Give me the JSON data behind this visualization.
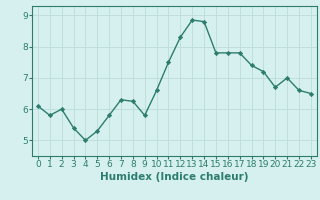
{
  "x": [
    0,
    1,
    2,
    3,
    4,
    5,
    6,
    7,
    8,
    9,
    10,
    11,
    12,
    13,
    14,
    15,
    16,
    17,
    18,
    19,
    20,
    21,
    22,
    23
  ],
  "y": [
    6.1,
    5.8,
    6.0,
    5.4,
    5.0,
    5.3,
    5.8,
    6.3,
    6.25,
    5.8,
    6.6,
    7.5,
    8.3,
    8.85,
    8.8,
    7.8,
    7.8,
    7.8,
    7.4,
    7.2,
    6.7,
    7.0,
    6.6,
    6.5
  ],
  "line_color": "#2d7d6e",
  "marker": "D",
  "marker_size": 2.2,
  "bg_color": "#d6f0f0",
  "grid_color": "#c0dede",
  "xlabel": "Humidex (Indice chaleur)",
  "ylim": [
    4.5,
    9.3
  ],
  "xlim": [
    -0.5,
    23.5
  ],
  "yticks": [
    5,
    6,
    7,
    8,
    9
  ],
  "xtick_labels": [
    "0",
    "1",
    "2",
    "3",
    "4",
    "5",
    "6",
    "7",
    "8",
    "9",
    "10",
    "11",
    "12",
    "13",
    "14",
    "15",
    "16",
    "17",
    "18",
    "19",
    "20",
    "21",
    "22",
    "23"
  ],
  "xlabel_fontsize": 7.5,
  "tick_fontsize": 6.5,
  "line_width": 1.0,
  "spine_color": "#2d7d6e"
}
